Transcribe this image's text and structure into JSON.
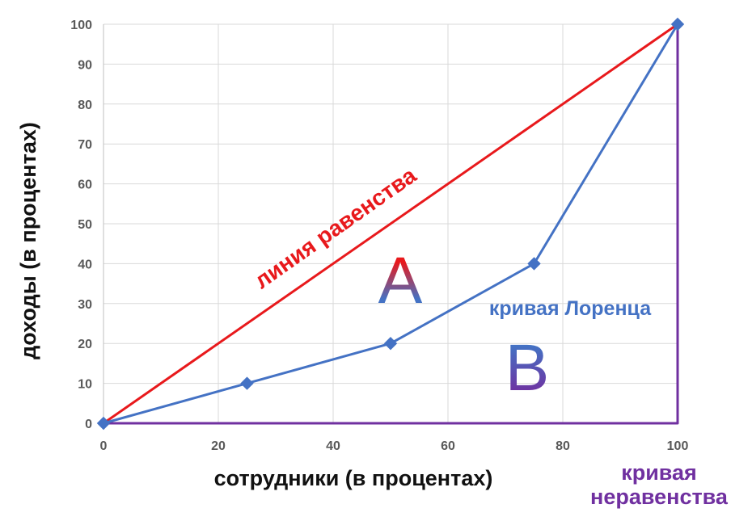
{
  "chart_data": {
    "type": "line",
    "xlabel": "сотрудники (в процентах)",
    "ylabel": "доходы (в процентах)",
    "xlim": [
      0,
      100
    ],
    "ylim": [
      0,
      100
    ],
    "x_ticks": [
      0,
      20,
      40,
      60,
      80,
      100
    ],
    "y_ticks": [
      0,
      10,
      20,
      30,
      40,
      50,
      60,
      70,
      80,
      90,
      100
    ],
    "grid": true,
    "series": [
      {
        "name": "линия равенства",
        "color": "#e8191c",
        "marker": "none",
        "points": [
          {
            "x": 0,
            "y": 0
          },
          {
            "x": 100,
            "y": 100
          }
        ]
      },
      {
        "name": "кривая Лоренца",
        "color": "#4472c4",
        "marker": "diamond",
        "points": [
          {
            "x": 0,
            "y": 0
          },
          {
            "x": 25,
            "y": 10
          },
          {
            "x": 50,
            "y": 20
          },
          {
            "x": 75,
            "y": 40
          },
          {
            "x": 100,
            "y": 100
          }
        ]
      },
      {
        "name": "кривая неравенства",
        "color": "#7030a0",
        "marker": "none",
        "points": [
          {
            "x": 0,
            "y": 0
          },
          {
            "x": 100,
            "y": 0
          },
          {
            "x": 100,
            "y": 100
          }
        ]
      }
    ],
    "annotations": {
      "equality_label": {
        "text": "линия равенства",
        "color": "#e8191c"
      },
      "lorenz_label": {
        "text": "кривая Лоренца",
        "color": "#4472c4"
      },
      "inequality_label": {
        "line1": "кривая",
        "line2": "неравенства",
        "color": "#7030a0"
      },
      "area_a": {
        "text": "A",
        "color_top": "#e8191c",
        "color_bottom": "#4472c4"
      },
      "area_b": {
        "text": "B",
        "color_top": "#4472c4",
        "color_bottom": "#7030a0"
      }
    }
  }
}
